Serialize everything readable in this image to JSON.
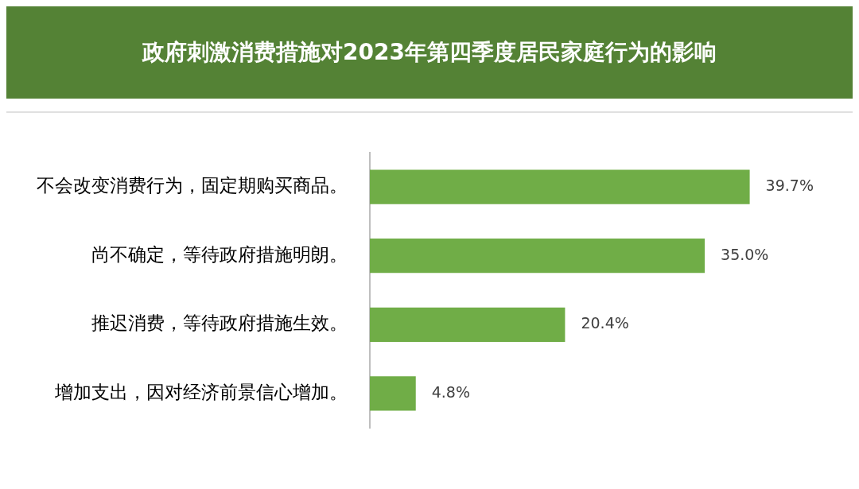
{
  "chart_data": {
    "type": "bar",
    "orientation": "horizontal",
    "title": "政府刺激消费措施对2023年第四季度居民家庭行为的影响",
    "categories": [
      "不会改变消费行为，固定期购买商品。",
      "尚不确定，等待政府措施明朗。",
      "推迟消费，等待政府措施生效。",
      "增加支出，因对经济前景信心增加。"
    ],
    "values": [
      39.7,
      35.0,
      20.4,
      4.8
    ],
    "value_labels": [
      "39.7%",
      "35.0%",
      "20.4%",
      "4.8%"
    ],
    "color": "#70ad47",
    "legend": false
  }
}
